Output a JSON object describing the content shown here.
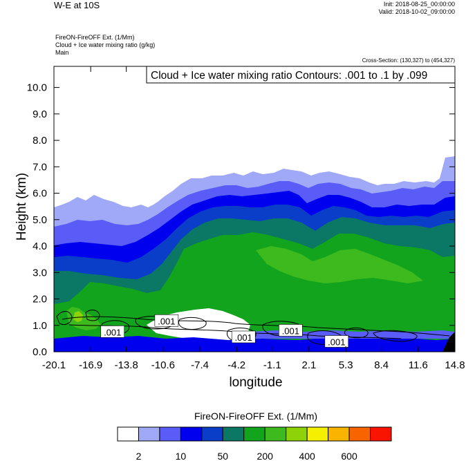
{
  "header": {
    "title": "W-E at 10S",
    "init": "Init: 2018-08-25_00:00:00",
    "valid": "Valid: 2018-10-02_09:00:00",
    "field_lines": [
      "FireON-FireOFF Ext.   (1/Mm)",
      "Cloud + Ice water mixing ratio   (g/kg)",
      "Main"
    ],
    "cross_section": "Cross-Section: (130,327) to (454,327)"
  },
  "chart_data": {
    "type": "heatmap",
    "title": "Cloud + Ice water mixing ratio Contours: .001 to .1 by .099",
    "xlabel": "longitude",
    "ylabel": "Height (km)",
    "xlim": [
      -20.1,
      14.8
    ],
    "ylim": [
      0.0,
      10.8
    ],
    "x_ticks": [
      "-20.1",
      "-16.9",
      "-13.8",
      "-10.6",
      "-7.4",
      "-4.2",
      "-1.1",
      "2.1",
      "5.3",
      "8.4",
      "11.6",
      "14.8"
    ],
    "y_ticks": [
      "0.0",
      "1.0",
      "2.0",
      "3.0",
      "4.0",
      "5.0",
      "6.0",
      "7.0",
      "8.0",
      "9.0",
      "10.0"
    ],
    "contour_labels": [
      {
        "text": ".001",
        "x": -15.0,
        "y": 0.75
      },
      {
        "text": ".001",
        "x": -10.3,
        "y": 1.17
      },
      {
        "text": ".001",
        "x": -3.6,
        "y": 0.55
      },
      {
        "text": ".001",
        "x": 0.5,
        "y": 0.8
      },
      {
        "text": ".001",
        "x": 4.5,
        "y": 0.38
      }
    ],
    "colorbar": {
      "title": "FireON-FireOFF Ext.  (1/Mm)",
      "colors": [
        "#ffffff",
        "#a0a8f8",
        "#5a5cf8",
        "#0000ee",
        "#0a3ec8",
        "#0a7864",
        "#12a41c",
        "#3cba1e",
        "#8ed20a",
        "#f4f000",
        "#f8b400",
        "#f86400",
        "#f81400"
      ],
      "labels": [
        "2",
        "10",
        "50",
        "200",
        "400",
        "600"
      ]
    }
  }
}
